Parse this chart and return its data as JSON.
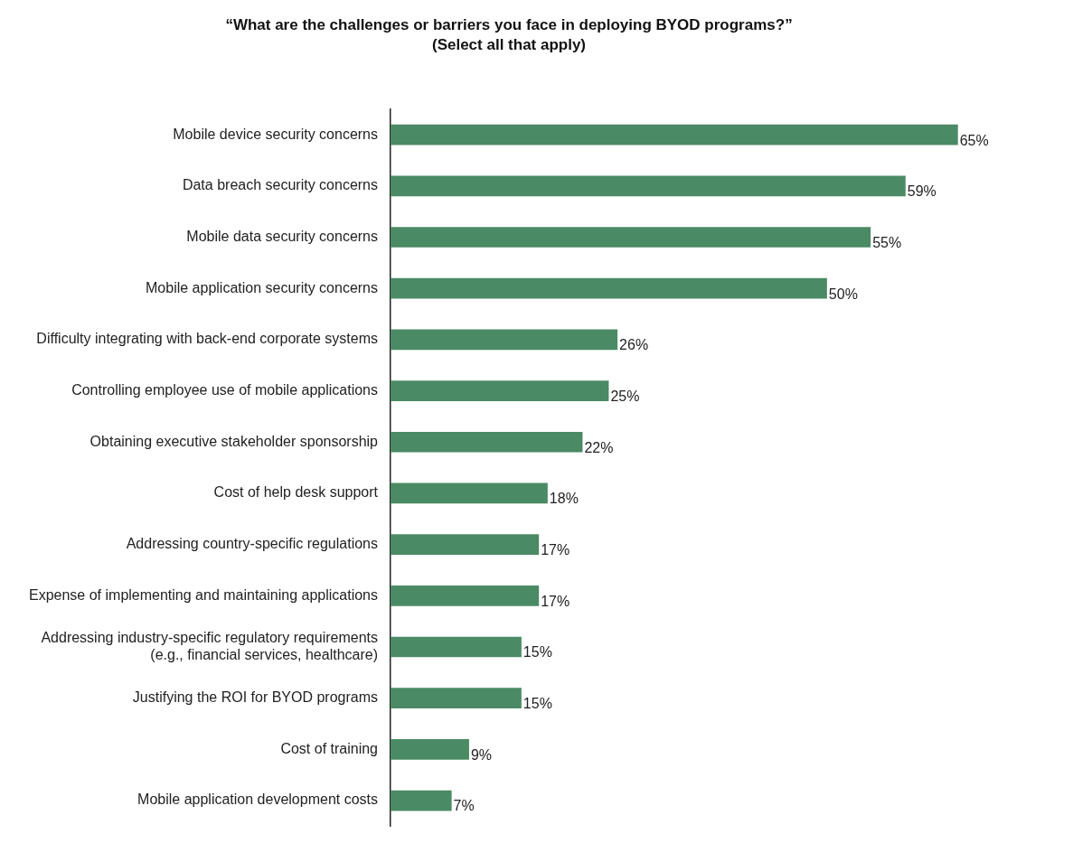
{
  "chart_data": {
    "type": "bar",
    "orientation": "horizontal",
    "title": "“What are the challenges or barriers you face in deploying BYOD programs?”",
    "subtitle": "(Select all that apply)",
    "categories": [
      "Mobile device security concerns",
      "Data breach security concerns",
      "Mobile data security concerns",
      "Mobile application security concerns",
      "Difficulty integrating with back-end corporate systems",
      "Controlling employee use of mobile applications",
      "Obtaining executive stakeholder sponsorship",
      "Cost of help desk support",
      "Addressing country-specific regulations",
      "Expense of implementing and maintaining applications",
      "Addressing industry-specific regulatory requirements\n(e.g., financial services, healthcare)",
      "Justifying the ROI for BYOD programs",
      "Cost of training",
      "Mobile application development costs"
    ],
    "values": [
      65,
      59,
      55,
      50,
      26,
      25,
      22,
      18,
      17,
      17,
      15,
      15,
      9,
      7
    ],
    "value_labels": [
      "65%",
      "59%",
      "55%",
      "50%",
      "26%",
      "25%",
      "22%",
      "18%",
      "17%",
      "17%",
      "15%",
      "15%",
      "9%",
      "7%"
    ],
    "color": "#4a8a64",
    "grid": false,
    "legend": false
  }
}
